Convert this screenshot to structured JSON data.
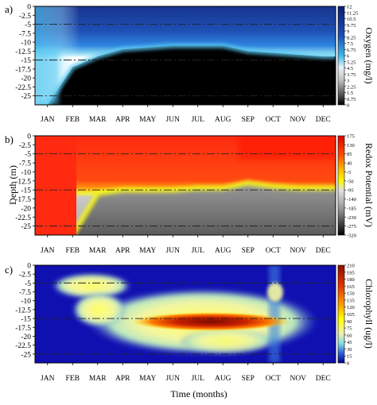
{
  "figure": {
    "xlabel": "Time (months)",
    "shared_ylabel": "Depth (m)"
  },
  "chart_data": [
    {
      "type": "heatmap",
      "panel_label": "a)",
      "colorbar_label": "Oxygen (mg/l)",
      "categories": [
        "JAN",
        "FEB",
        "MAR",
        "APR",
        "MAY",
        "JUN",
        "JUL",
        "AUG",
        "SEP",
        "OCT",
        "NOV",
        "DEC"
      ],
      "y_ticks": [
        "0",
        "-2.5",
        "-5",
        "-7.5",
        "-10",
        "-12.5",
        "-15",
        "-17.5",
        "-20",
        "-22.5",
        "-25"
      ],
      "ylim": [
        -27.5,
        0
      ],
      "colorbar_ticks": [
        "12",
        "11.25",
        "10.5",
        "9.75",
        "9",
        "8.25",
        "7.5",
        "6.75",
        "6",
        "5.25",
        "4.5",
        "3.75",
        "3",
        "2.25",
        "1.5",
        "0.75",
        "0"
      ],
      "colorbar_range": [
        0,
        12
      ],
      "reference_depths": [
        -5,
        -15,
        -25
      ],
      "anoxic_boundary_depth": [
        -27.5,
        -17,
        -14,
        -12,
        -11.5,
        -11,
        -11,
        -11,
        -12.5,
        -13,
        -13.5,
        -14
      ],
      "colors": [
        "#000000",
        "#404040",
        "#c0c0c0",
        "#e0e0e0",
        "#4fc8f0",
        "#0070c8",
        "#1a4fa8",
        "#0a2a80"
      ]
    },
    {
      "type": "heatmap",
      "panel_label": "b)",
      "colorbar_label": "Redox Potential (mV)",
      "categories": [
        "JAN",
        "FEB",
        "MAR",
        "APR",
        "MAY",
        "JUN",
        "JUL",
        "AUG",
        "SEP",
        "OCT",
        "NOV",
        "DEC"
      ],
      "y_ticks": [
        "0",
        "-2.5",
        "-5",
        "-7.5",
        "-10",
        "-12.5",
        "-15",
        "-17.5",
        "-20",
        "-22.5",
        "-25"
      ],
      "ylim": [
        -27.5,
        0
      ],
      "colorbar_ticks": [
        "175",
        "130",
        "85",
        "40",
        "-5",
        "-50",
        "-95",
        "-140",
        "-185",
        "-230",
        "-275",
        "-320"
      ],
      "colorbar_range": [
        -320,
        175
      ],
      "reference_depths": [
        -5,
        -15,
        -25
      ],
      "reducing_boundary_depth": [
        -27.5,
        -27.5,
        -16,
        -15,
        -15,
        -15,
        -14.5,
        -14.5,
        -13,
        -14,
        -14.5,
        -14.5
      ],
      "colors": [
        "#000000",
        "#505050",
        "#909090",
        "#c0c0c0",
        "#f0f000",
        "#ffc000",
        "#ff6000",
        "#ff2000",
        "#e00000"
      ]
    },
    {
      "type": "heatmap",
      "panel_label": "c)",
      "colorbar_label": "Chlorophyll (ug/l)",
      "categories": [
        "JAN",
        "FEB",
        "MAR",
        "APR",
        "MAY",
        "JUN",
        "JUL",
        "AUG",
        "SEP",
        "OCT",
        "NOV",
        "DEC"
      ],
      "y_ticks": [
        "0",
        "-2.5",
        "-5",
        "-7.5",
        "-10",
        "-12.5",
        "-15",
        "-17.5",
        "-20",
        "-22.5",
        "-25"
      ],
      "ylim": [
        -27.5,
        0
      ],
      "colorbar_ticks": [
        "210",
        "195",
        "180",
        "165",
        "150",
        "135",
        "120",
        "105",
        "90",
        "75",
        "60",
        "45",
        "30",
        "15",
        "0"
      ],
      "colorbar_range": [
        0,
        210
      ],
      "reference_depths": [
        -5,
        -15,
        -25
      ],
      "max_concentration": {
        "month": "JUL",
        "depth": -15
      },
      "colors": [
        "#0000a0",
        "#2020c0",
        "#5080e0",
        "#80e0e0",
        "#f0f0b0",
        "#ffff00",
        "#ff9000",
        "#e03000",
        "#a01000"
      ]
    }
  ]
}
